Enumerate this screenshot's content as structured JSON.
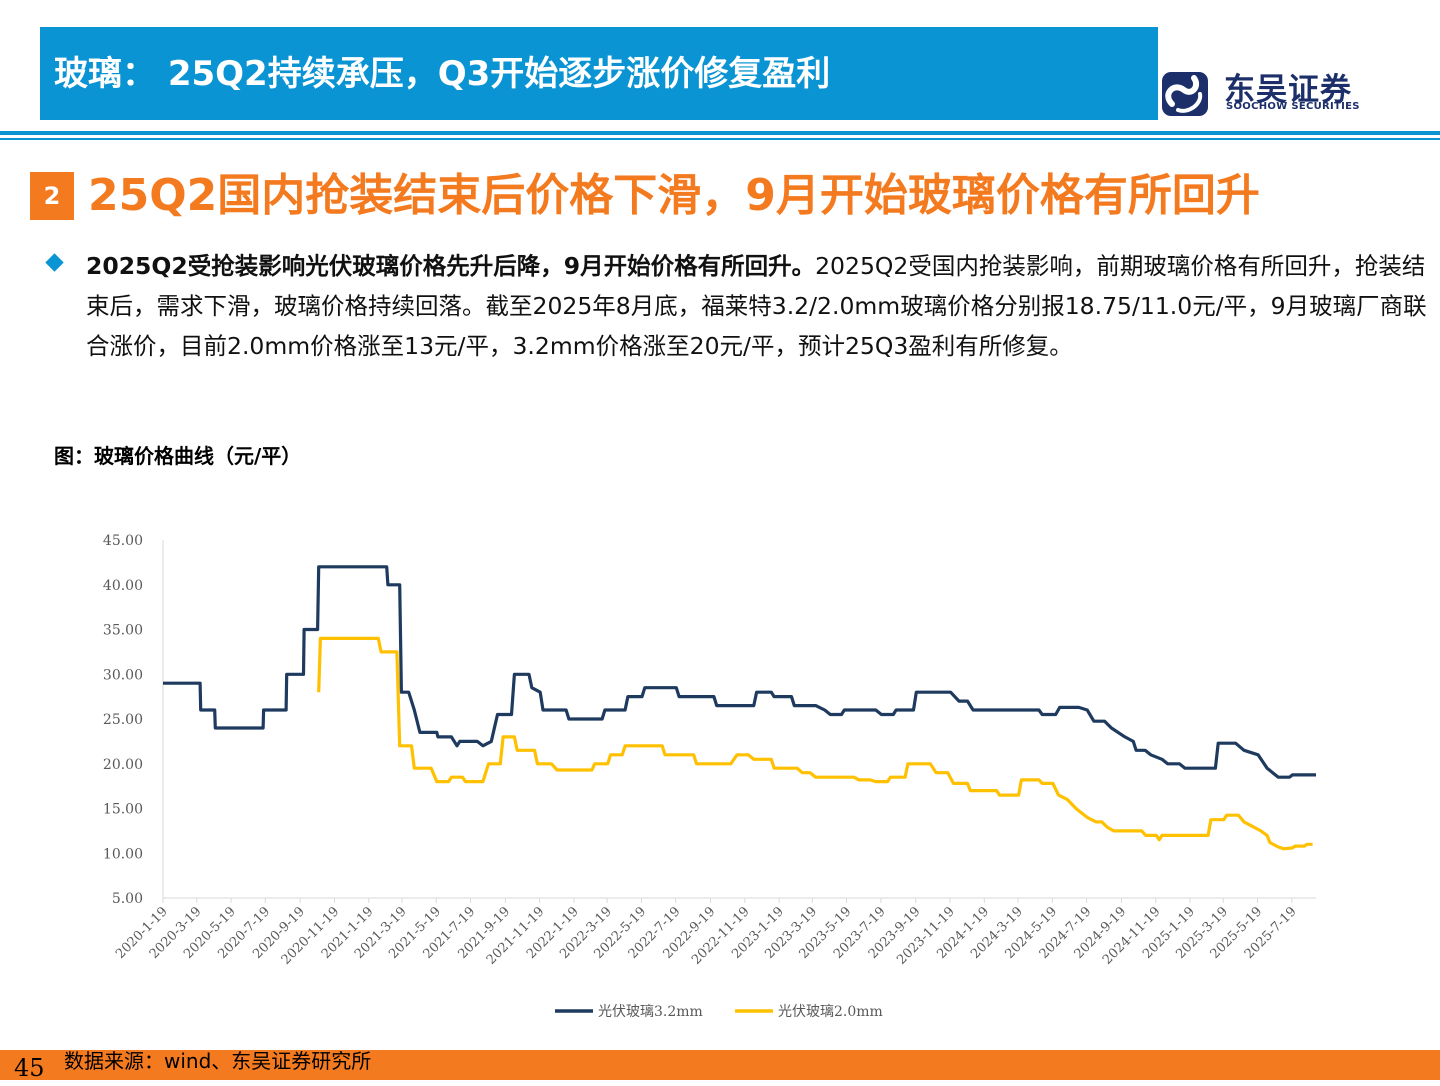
{
  "header": {
    "title": "玻璃： 25Q2持续承压，Q3开始逐步涨价修复盈利",
    "logo_cn": "东吴证券",
    "logo_en": "SOOCHOW SECURITIES"
  },
  "section": {
    "number": "2",
    "title": "25Q2国内抢装结束后价格下滑，9月开始玻璃价格有所回升"
  },
  "bullet": {
    "bold": "2025Q2受抢装影响光伏玻璃价格先升后降，9月开始价格有所回升。",
    "text": "2025Q2受国内抢装影响，前期玻璃价格有所回升，抢装结束后，需求下滑，玻璃价格持续回落。截至2025年8月底，福莱特3.2/2.0mm玻璃价格分别报18.75/11.0元/平，9月玻璃厂商联合涨价，目前2.0mm价格涨至13元/平，3.2mm价格涨至20元/平，预计25Q3盈利有所修复。"
  },
  "figure_title": "图：玻璃价格曲线（元/平）",
  "colors": {
    "accent": "#0a94d3",
    "orange": "#f47a1f",
    "series_3_2": "#1f3a5f",
    "series_2_0": "#ffc000"
  },
  "chart_data": {
    "type": "line",
    "title": "",
    "xlabel": "",
    "ylabel": "",
    "ylim": [
      5,
      45
    ],
    "yticks": [
      "45.00",
      "40.00",
      "35.00",
      "30.00",
      "25.00",
      "20.00",
      "15.00",
      "10.00",
      "5.00"
    ],
    "x_start": "2020-1-19",
    "x_end": "2025-8-31",
    "xticks": [
      "2020-1-19",
      "2020-3-19",
      "2020-5-19",
      "2020-7-19",
      "2020-9-19",
      "2020-11-19",
      "2021-1-19",
      "2021-3-19",
      "2021-5-19",
      "2021-7-19",
      "2021-9-19",
      "2021-11-19",
      "2022-1-19",
      "2022-3-19",
      "2022-5-19",
      "2022-7-19",
      "2022-9-19",
      "2022-11-19",
      "2023-1-19",
      "2023-3-19",
      "2023-5-19",
      "2023-7-19",
      "2023-9-19",
      "2023-11-19",
      "2024-1-19",
      "2024-3-19",
      "2024-5-19",
      "2024-7-19",
      "2024-9-19",
      "2024-11-19",
      "2025-1-19",
      "2025-3-19",
      "2025-5-19",
      "2025-7-19"
    ],
    "legend": "bottom",
    "grid": false,
    "series": [
      {
        "name": "光伏玻璃3.2mm",
        "points": [
          [
            "2020-1-19",
            29
          ],
          [
            "2020-3-25",
            29
          ],
          [
            "2020-3-26",
            26
          ],
          [
            "2020-4-20",
            26
          ],
          [
            "2020-4-21",
            24
          ],
          [
            "2020-7-15",
            24
          ],
          [
            "2020-7-16",
            26
          ],
          [
            "2020-8-25",
            26
          ],
          [
            "2020-8-26",
            30
          ],
          [
            "2020-9-25",
            30
          ],
          [
            "2020-9-26",
            35
          ],
          [
            "2020-10-20",
            35
          ],
          [
            "2020-10-22",
            42
          ],
          [
            "2021-2-20",
            42
          ],
          [
            "2021-2-22",
            40
          ],
          [
            "2021-3-15",
            40
          ],
          [
            "2021-3-18",
            28
          ],
          [
            "2021-3-31",
            28
          ],
          [
            "2021-4-10",
            26
          ],
          [
            "2021-4-20",
            23.5
          ],
          [
            "2021-5-20",
            23.5
          ],
          [
            "2021-5-22",
            23
          ],
          [
            "2021-6-15",
            23
          ],
          [
            "2021-6-25",
            22
          ],
          [
            "2021-6-30",
            22.5
          ],
          [
            "2021-7-31",
            22.5
          ],
          [
            "2021-8-10",
            22
          ],
          [
            "2021-8-25",
            22.5
          ],
          [
            "2021-9-05",
            25.5
          ],
          [
            "2021-9-30",
            25.5
          ],
          [
            "2021-10-05",
            30
          ],
          [
            "2021-10-31",
            30
          ],
          [
            "2021-11-05",
            28.5
          ],
          [
            "2021-11-20",
            28
          ],
          [
            "2021-11-25",
            26
          ],
          [
            "2022-1-05",
            26
          ],
          [
            "2022-1-10",
            25
          ],
          [
            "2022-3-10",
            25
          ],
          [
            "2022-3-15",
            26
          ],
          [
            "2022-4-20",
            26
          ],
          [
            "2022-4-25",
            27.5
          ],
          [
            "2022-5-20",
            27.5
          ],
          [
            "2022-5-25",
            28.5
          ],
          [
            "2022-7-20",
            28.5
          ],
          [
            "2022-7-25",
            27.5
          ],
          [
            "2022-9-25",
            27.5
          ],
          [
            "2022-9-30",
            26.5
          ],
          [
            "2022-12-05",
            26.5
          ],
          [
            "2022-12-10",
            28
          ],
          [
            "2023-1-05",
            28
          ],
          [
            "2023-1-10",
            27.5
          ],
          [
            "2023-2-10",
            27.5
          ],
          [
            "2023-2-15",
            26.5
          ],
          [
            "2023-3-25",
            26.5
          ],
          [
            "2023-4-10",
            26
          ],
          [
            "2023-4-20",
            25.5
          ],
          [
            "2023-5-10",
            25.5
          ],
          [
            "2023-5-15",
            26
          ],
          [
            "2023-7-10",
            26
          ],
          [
            "2023-7-20",
            25.5
          ],
          [
            "2023-8-10",
            25.5
          ],
          [
            "2023-8-15",
            26
          ],
          [
            "2023-9-15",
            26
          ],
          [
            "2023-9-20",
            28
          ],
          [
            "2023-11-20",
            28
          ],
          [
            "2023-12-05",
            27
          ],
          [
            "2023-12-20",
            27
          ],
          [
            "2023-12-30",
            26
          ],
          [
            "2024-4-25",
            26
          ],
          [
            "2024-5-01",
            25.5
          ],
          [
            "2024-5-25",
            25.5
          ],
          [
            "2024-6-01",
            26.3
          ],
          [
            "2024-7-05",
            26.3
          ],
          [
            "2024-7-20",
            26
          ],
          [
            "2024-8-01",
            24.75
          ],
          [
            "2024-8-20",
            24.75
          ],
          [
            "2024-9-01",
            24
          ],
          [
            "2024-9-25",
            23
          ],
          [
            "2024-10-10",
            22.5
          ],
          [
            "2024-10-15",
            21.5
          ],
          [
            "2024-10-31",
            21.5
          ],
          [
            "2024-11-10",
            21
          ],
          [
            "2024-11-30",
            20.5
          ],
          [
            "2024-12-10",
            20
          ],
          [
            "2024-12-31",
            20
          ],
          [
            "2025-1-10",
            19.5
          ],
          [
            "2025-3-05",
            19.5
          ],
          [
            "2025-3-10",
            22.3
          ],
          [
            "2025-4-10",
            22.3
          ],
          [
            "2025-4-25",
            21.5
          ],
          [
            "2025-5-20",
            21
          ],
          [
            "2025-6-05",
            19.5
          ],
          [
            "2025-6-15",
            19
          ],
          [
            "2025-6-25",
            18.5
          ],
          [
            "2025-7-15",
            18.5
          ],
          [
            "2025-7-20",
            18.75
          ],
          [
            "2025-8-31",
            18.75
          ]
        ]
      },
      {
        "name": "光伏玻璃2.0mm",
        "points": [
          [
            "2020-10-22",
            28
          ],
          [
            "2020-10-25",
            34
          ],
          [
            "2021-2-05",
            34
          ],
          [
            "2021-2-10",
            32.5
          ],
          [
            "2021-3-10",
            32.5
          ],
          [
            "2021-3-15",
            22
          ],
          [
            "2021-4-05",
            22
          ],
          [
            "2021-4-10",
            19.5
          ],
          [
            "2021-5-10",
            19.5
          ],
          [
            "2021-5-20",
            18
          ],
          [
            "2021-6-10",
            18
          ],
          [
            "2021-6-15",
            18.5
          ],
          [
            "2021-7-05",
            18.5
          ],
          [
            "2021-7-10",
            18
          ],
          [
            "2021-8-10",
            18
          ],
          [
            "2021-8-20",
            20
          ],
          [
            "2021-9-10",
            20
          ],
          [
            "2021-9-15",
            23
          ],
          [
            "2021-10-05",
            23
          ],
          [
            "2021-10-10",
            21.5
          ],
          [
            "2021-11-10",
            21.5
          ],
          [
            "2021-11-15",
            20
          ],
          [
            "2021-12-10",
            20
          ],
          [
            "2021-12-20",
            19.3
          ],
          [
            "2022-2-20",
            19.3
          ],
          [
            "2022-2-25",
            20
          ],
          [
            "2022-3-20",
            20
          ],
          [
            "2022-3-25",
            21
          ],
          [
            "2022-4-15",
            21
          ],
          [
            "2022-4-20",
            22
          ],
          [
            "2022-6-25",
            22
          ],
          [
            "2022-6-30",
            21
          ],
          [
            "2022-8-20",
            21
          ],
          [
            "2022-8-25",
            20
          ],
          [
            "2022-10-25",
            20
          ],
          [
            "2022-11-05",
            21
          ],
          [
            "2022-11-25",
            21
          ],
          [
            "2022-12-05",
            20.5
          ],
          [
            "2023-1-05",
            20.5
          ],
          [
            "2023-1-10",
            19.5
          ],
          [
            "2023-2-20",
            19.5
          ],
          [
            "2023-3-01",
            19
          ],
          [
            "2023-3-15",
            19
          ],
          [
            "2023-3-25",
            18.5
          ],
          [
            "2023-6-01",
            18.5
          ],
          [
            "2023-6-10",
            18.2
          ],
          [
            "2023-6-30",
            18.2
          ],
          [
            "2023-7-10",
            18
          ],
          [
            "2023-7-31",
            18
          ],
          [
            "2023-8-05",
            18.5
          ],
          [
            "2023-8-31",
            18.5
          ],
          [
            "2023-9-05",
            20
          ],
          [
            "2023-10-15",
            20
          ],
          [
            "2023-10-25",
            19
          ],
          [
            "2023-11-15",
            19
          ],
          [
            "2023-11-25",
            17.8
          ],
          [
            "2023-12-20",
            17.8
          ],
          [
            "2023-12-25",
            17
          ],
          [
            "2024-2-10",
            17
          ],
          [
            "2024-2-15",
            16.5
          ],
          [
            "2024-3-20",
            16.5
          ],
          [
            "2024-3-25",
            18.2
          ],
          [
            "2024-4-25",
            18.2
          ],
          [
            "2024-5-01",
            17.8
          ],
          [
            "2024-5-20",
            17.8
          ],
          [
            "2024-5-30",
            16.5
          ],
          [
            "2024-6-15",
            16
          ],
          [
            "2024-6-30",
            15
          ],
          [
            "2024-7-20",
            14
          ],
          [
            "2024-8-05",
            13.5
          ],
          [
            "2024-8-15",
            13.5
          ],
          [
            "2024-8-25",
            12.9
          ],
          [
            "2024-9-05",
            12.5
          ],
          [
            "2024-10-25",
            12.5
          ],
          [
            "2024-11-01",
            12
          ],
          [
            "2024-11-20",
            12
          ],
          [
            "2024-11-25",
            11.5
          ],
          [
            "2024-11-30",
            12
          ],
          [
            "2025-2-20",
            12
          ],
          [
            "2025-2-25",
            13.75
          ],
          [
            "2025-3-20",
            13.75
          ],
          [
            "2025-3-25",
            14.25
          ],
          [
            "2025-4-15",
            14.25
          ],
          [
            "2025-4-25",
            13.5
          ],
          [
            "2025-5-10",
            13
          ],
          [
            "2025-5-25",
            12.5
          ],
          [
            "2025-6-05",
            12
          ],
          [
            "2025-6-10",
            11.2
          ],
          [
            "2025-6-25",
            10.7
          ],
          [
            "2025-7-05",
            10.5
          ],
          [
            "2025-7-20",
            10.6
          ],
          [
            "2025-7-25",
            10.8
          ],
          [
            "2025-8-10",
            10.8
          ],
          [
            "2025-8-15",
            11
          ],
          [
            "2025-8-25",
            11
          ]
        ]
      }
    ]
  },
  "footer": {
    "page_number": "45",
    "source": "数据来源：wind、东吴证券研究所"
  }
}
